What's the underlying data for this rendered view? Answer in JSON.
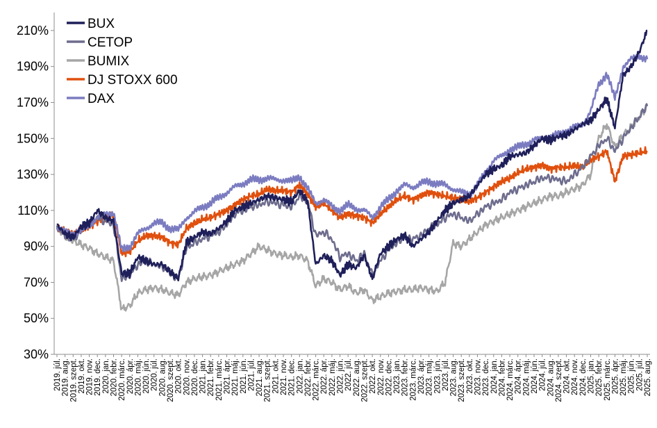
{
  "chart_data": {
    "type": "line",
    "title": "",
    "xlabel": "",
    "ylabel": "",
    "ylim": [
      30,
      220
    ],
    "y_ticks": [
      "30%",
      "50%",
      "70%",
      "90%",
      "110%",
      "130%",
      "150%",
      "170%",
      "190%",
      "210%"
    ],
    "y_tick_values": [
      30,
      50,
      70,
      90,
      110,
      130,
      150,
      170,
      190,
      210
    ],
    "grid": false,
    "legend_position": "top-left",
    "x_labels": [
      "2019. júl.",
      "2019. aug.",
      "2019. szept.",
      "2019. okt.",
      "2019. nov.",
      "2019. dec.",
      "2020. jan.",
      "2020. febr.",
      "2020. márc.",
      "2020. ápr.",
      "2020. máj.",
      "2020. jún.",
      "2020. júl.",
      "2020. aug.",
      "2020. szept.",
      "2020. okt.",
      "2020. nov.",
      "2020. dec.",
      "2021. jan.",
      "2021. febr.",
      "2021. márc.",
      "2021. ápr.",
      "2021. máj.",
      "2021. jún.",
      "2021. júl.",
      "2021. aug.",
      "2021. szept.",
      "2021. okt.",
      "2021. nov.",
      "2021. dec.",
      "2022. jan.",
      "2022. febr.",
      "2022. márc.",
      "2022. ápr.",
      "2022. máj.",
      "2022. jún.",
      "2022. júl.",
      "2022. aug.",
      "2022. szept.",
      "2022. okt.",
      "2022. nov.",
      "2022. dec.",
      "2023. jan.",
      "2023. febr.",
      "2023. márc.",
      "2023. ápr.",
      "2023. máj.",
      "2023. jún.",
      "2023. júl.",
      "2023. aug.",
      "2023. szept.",
      "2023. okt.",
      "2023. nov.",
      "2023. dec.",
      "2024. jan.",
      "2024. febr.",
      "2024. márc.",
      "2024. ápr.",
      "2024. máj.",
      "2024. jún.",
      "2024. júl.",
      "2024. aug.",
      "2024. szept.",
      "2024. okt.",
      "2024. nov.",
      "2024. dec.",
      "2025. jan.",
      "2025. febr.",
      "2025. márc.",
      "2025. ápr.",
      "2025. máj.",
      "2025. jún.",
      "2025. júl.",
      "2025. aug."
    ],
    "series": [
      {
        "name": "BUX",
        "color": "#1f1f5a",
        "values": [
          102,
          97,
          95,
          101,
          103,
          110,
          106,
          104,
          75,
          75,
          84,
          82,
          80,
          80,
          76,
          72,
          92,
          95,
          98,
          97,
          100,
          104,
          110,
          112,
          114,
          116,
          118,
          117,
          116,
          115,
          121,
          115,
          80,
          85,
          82,
          74,
          80,
          78,
          85,
          72,
          86,
          90,
          94,
          96,
          90,
          94,
          98,
          104,
          110,
          114,
          116,
          118,
          124,
          130,
          133,
          135,
          140,
          141,
          142,
          146,
          150,
          149,
          151,
          152,
          155,
          158,
          160,
          166,
          172,
          156,
          185,
          190,
          198,
          210
        ]
      },
      {
        "name": "CETOP",
        "color": "#6e6d8e",
        "values": [
          101,
          96,
          94,
          99,
          102,
          106,
          104,
          102,
          72,
          74,
          80,
          82,
          80,
          79,
          75,
          72,
          89,
          92,
          94,
          96,
          98,
          102,
          108,
          110,
          112,
          113,
          115,
          114,
          113,
          112,
          118,
          115,
          96,
          98,
          94,
          84,
          86,
          82,
          86,
          74,
          82,
          88,
          92,
          95,
          94,
          96,
          100,
          102,
          106,
          108,
          106,
          104,
          108,
          112,
          114,
          116,
          120,
          122,
          124,
          126,
          128,
          128,
          127,
          126,
          130,
          134,
          140,
          146,
          150,
          143,
          150,
          156,
          162,
          168
        ]
      },
      {
        "name": "BUMIX",
        "color": "#a6a6a6",
        "values": [
          100,
          96,
          93,
          91,
          89,
          86,
          84,
          82,
          55,
          57,
          64,
          66,
          67,
          66,
          64,
          63,
          70,
          72,
          73,
          74,
          76,
          78,
          80,
          82,
          86,
          90,
          88,
          86,
          85,
          84,
          85,
          82,
          68,
          72,
          70,
          66,
          68,
          64,
          66,
          60,
          62,
          64,
          65,
          66,
          66,
          67,
          66,
          65,
          70,
          92,
          90,
          94,
          98,
          102,
          104,
          106,
          108,
          110,
          112,
          114,
          116,
          118,
          118,
          120,
          122,
          124,
          130,
          150,
          158,
          145,
          152,
          156,
          162,
          168
        ]
      },
      {
        "name": "DJ STOXX 600",
        "color": "#e0500e",
        "values": [
          100,
          98,
          97,
          99,
          101,
          104,
          106,
          108,
          86,
          87,
          93,
          96,
          96,
          95,
          92,
          91,
          100,
          103,
          105,
          106,
          108,
          110,
          113,
          116,
          118,
          119,
          122,
          121,
          121,
          120,
          124,
          119,
          112,
          114,
          110,
          106,
          108,
          107,
          106,
          103,
          108,
          112,
          116,
          118,
          116,
          118,
          120,
          119,
          118,
          117,
          116,
          115,
          117,
          120,
          123,
          126,
          128,
          131,
          133,
          134,
          135,
          133,
          134,
          134,
          135,
          134,
          138,
          140,
          143,
          126,
          140,
          141,
          142,
          143
        ]
      },
      {
        "name": "DAX",
        "color": "#7b7cc0",
        "values": [
          101,
          98,
          97,
          99,
          102,
          106,
          108,
          109,
          88,
          90,
          97,
          100,
          103,
          103,
          100,
          99,
          106,
          109,
          112,
          114,
          117,
          120,
          123,
          125,
          127,
          127,
          128,
          127,
          127,
          126,
          129,
          122,
          114,
          116,
          112,
          110,
          113,
          111,
          110,
          106,
          112,
          116,
          121,
          124,
          123,
          125,
          126,
          125,
          124,
          122,
          120,
          119,
          124,
          131,
          138,
          140,
          144,
          145,
          147,
          149,
          150,
          151,
          152,
          154,
          156,
          158,
          165,
          180,
          186,
          172,
          190,
          194,
          196,
          194
        ]
      }
    ]
  }
}
